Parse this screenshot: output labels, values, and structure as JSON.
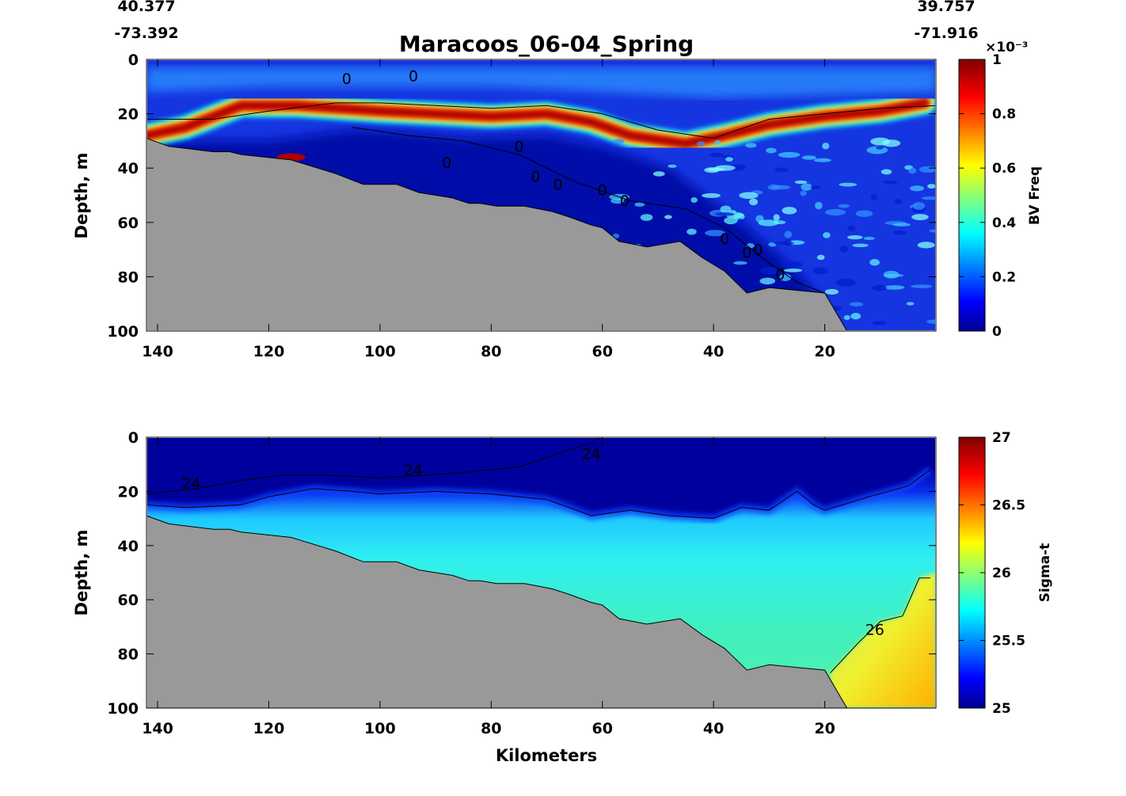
{
  "chart_data": [
    {
      "type": "heatmap",
      "title": "Maracoos_06-04_Spring",
      "corner_labels": {
        "left_lat": "40.377",
        "left_lon": "-73.392",
        "right_lat": "39.757",
        "right_lon": "-71.916"
      },
      "xlabel": "",
      "ylabel": "Depth, m",
      "x_reversed": true,
      "xlim": [
        142,
        0
      ],
      "ylim": [
        0,
        100
      ],
      "y_reversed": true,
      "xticks": [
        "140",
        "120",
        "100",
        "80",
        "60",
        "40",
        "20"
      ],
      "yticks": [
        "0",
        "20",
        "40",
        "60",
        "80",
        "100"
      ],
      "colorbar": {
        "label": "BV Freq",
        "exponent": "×10⁻³",
        "range": [
          0,
          1
        ],
        "ticks": [
          "0",
          "0.2",
          "0.4",
          "0.6",
          "0.8",
          "1"
        ],
        "colormap": "jet"
      },
      "contour_label": "0",
      "bathymetry": [
        [
          142,
          29
        ],
        [
          138,
          32
        ],
        [
          130,
          34
        ],
        [
          127,
          34
        ],
        [
          125,
          35
        ],
        [
          116,
          37
        ],
        [
          108,
          42
        ],
        [
          103,
          46
        ],
        [
          97,
          46
        ],
        [
          93,
          49
        ],
        [
          87,
          51
        ],
        [
          84,
          53
        ],
        [
          82,
          53
        ],
        [
          79,
          54
        ],
        [
          74,
          54
        ],
        [
          69,
          56
        ],
        [
          66,
          58
        ],
        [
          62,
          61
        ],
        [
          60,
          62
        ],
        [
          57,
          67
        ],
        [
          52,
          69
        ],
        [
          46,
          67
        ],
        [
          42,
          73
        ],
        [
          38,
          78
        ],
        [
          34,
          86
        ],
        [
          30,
          84
        ],
        [
          20,
          86
        ],
        [
          16,
          100
        ]
      ],
      "pycnocline_depth": [
        [
          142,
          22
        ],
        [
          130,
          22
        ],
        [
          120,
          19
        ],
        [
          108,
          16
        ],
        [
          100,
          16
        ],
        [
          90,
          17
        ],
        [
          80,
          18
        ],
        [
          70,
          17
        ],
        [
          60,
          20
        ],
        [
          50,
          26
        ],
        [
          40,
          29
        ],
        [
          30,
          22
        ],
        [
          20,
          20
        ],
        [
          10,
          18
        ],
        [
          0,
          17
        ]
      ],
      "ridge_depth": [
        [
          142,
          28
        ],
        [
          135,
          25
        ],
        [
          125,
          17
        ],
        [
          115,
          17
        ],
        [
          100,
          19
        ],
        [
          90,
          20
        ],
        [
          80,
          21
        ],
        [
          70,
          20
        ],
        [
          62,
          23
        ],
        [
          55,
          28
        ],
        [
          45,
          31
        ],
        [
          38,
          28
        ],
        [
          30,
          24
        ],
        [
          20,
          21
        ],
        [
          10,
          19
        ],
        [
          2,
          16
        ]
      ]
    },
    {
      "type": "heatmap",
      "xlabel": "Kilometers",
      "ylabel": "Depth, m",
      "x_reversed": true,
      "xlim": [
        142,
        0
      ],
      "ylim": [
        0,
        100
      ],
      "y_reversed": true,
      "xticks": [
        "140",
        "120",
        "100",
        "80",
        "60",
        "40",
        "20"
      ],
      "yticks": [
        "0",
        "20",
        "40",
        "60",
        "80",
        "100"
      ],
      "colorbar": {
        "label": "Sigma-t",
        "range": [
          25,
          27
        ],
        "ticks": [
          "25",
          "25.5",
          "26",
          "26.5",
          "27"
        ],
        "colormap": "jet"
      },
      "contours": [
        {
          "level": "24",
          "label": "24"
        },
        {
          "level": "26",
          "label": "26"
        }
      ],
      "bathymetry": [
        [
          142,
          29
        ],
        [
          138,
          32
        ],
        [
          130,
          34
        ],
        [
          127,
          34
        ],
        [
          125,
          35
        ],
        [
          116,
          37
        ],
        [
          108,
          42
        ],
        [
          103,
          46
        ],
        [
          97,
          46
        ],
        [
          93,
          49
        ],
        [
          87,
          51
        ],
        [
          84,
          53
        ],
        [
          82,
          53
        ],
        [
          79,
          54
        ],
        [
          74,
          54
        ],
        [
          69,
          56
        ],
        [
          66,
          58
        ],
        [
          62,
          61
        ],
        [
          60,
          62
        ],
        [
          57,
          67
        ],
        [
          52,
          69
        ],
        [
          46,
          67
        ],
        [
          42,
          73
        ],
        [
          38,
          78
        ],
        [
          34,
          86
        ],
        [
          30,
          84
        ],
        [
          20,
          86
        ],
        [
          16,
          100
        ]
      ],
      "isopycnal_24": [
        [
          142,
          21
        ],
        [
          138,
          20
        ],
        [
          133,
          19
        ],
        [
          125,
          16
        ],
        [
          118,
          14
        ],
        [
          110,
          14
        ],
        [
          100,
          15
        ],
        [
          92,
          14
        ],
        [
          85,
          13
        ],
        [
          75,
          11
        ],
        [
          68,
          6
        ],
        [
          62,
          2
        ],
        [
          60,
          0
        ]
      ],
      "dense_layer_top": [
        [
          142,
          25
        ],
        [
          135,
          26
        ],
        [
          125,
          25
        ],
        [
          120,
          22
        ],
        [
          112,
          19
        ],
        [
          105,
          20
        ],
        [
          100,
          21
        ],
        [
          90,
          20
        ],
        [
          80,
          21
        ],
        [
          70,
          23
        ],
        [
          62,
          29
        ],
        [
          55,
          27
        ],
        [
          48,
          29
        ],
        [
          40,
          30
        ],
        [
          35,
          26
        ],
        [
          30,
          27
        ],
        [
          25,
          20
        ],
        [
          22,
          25
        ],
        [
          20,
          27
        ],
        [
          12,
          22
        ],
        [
          5,
          18
        ],
        [
          1,
          12
        ]
      ],
      "isopycnal_26": [
        [
          19,
          87
        ],
        [
          14,
          76
        ],
        [
          10,
          68
        ],
        [
          6,
          66
        ],
        [
          3,
          52
        ],
        [
          1,
          52
        ]
      ]
    }
  ]
}
